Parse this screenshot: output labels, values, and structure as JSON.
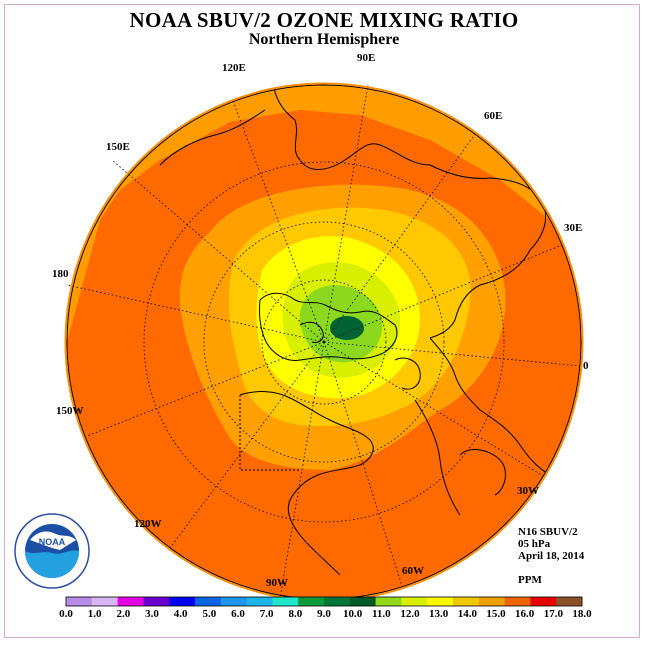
{
  "title": "NOAA SBUV/2 OZONE MIXING RATIO",
  "subtitle": "Northern Hemisphere",
  "longitude_labels": {
    "e90": "90E",
    "e60": "60E",
    "e30": "30E",
    "e120": "120E",
    "e150": "150E",
    "l180": "180",
    "w150": "150W",
    "w120": "120W",
    "w90": "90W",
    "w60": "60W",
    "w30": "30W",
    "l0": "0"
  },
  "info": {
    "instrument": "N16 SBUV/2",
    "level": "05 hPa",
    "date": "April 18, 2014",
    "units": "PPM"
  },
  "logo": {
    "text": "NOAA",
    "icon": "noaa-logo-icon"
  },
  "colorbar": {
    "labels": [
      "0.0",
      "1.0",
      "2.0",
      "3.0",
      "4.0",
      "5.0",
      "6.0",
      "7.0",
      "8.0",
      "9.0",
      "10.0",
      "11.0",
      "12.0",
      "13.0",
      "14.0",
      "15.0",
      "16.0",
      "17.0",
      "18.0"
    ],
    "colors": [
      "#b78ce8",
      "#d8b4f4",
      "#e600e6",
      "#6a00d0",
      "#0000f0",
      "#0a64e6",
      "#1e96f0",
      "#1cb4ec",
      "#1ee6c8",
      "#0a9a3c",
      "#00783a",
      "#005a28",
      "#90d818",
      "#d8f000",
      "#f8f800",
      "#f0c800",
      "#f0a000",
      "#f06400",
      "#e60000",
      "#8c5028"
    ]
  },
  "map_colors": {
    "ocean_orange": "#ff6a00",
    "orange2": "#ffa000",
    "orange1": "#ffbe00",
    "yellow": "#ffff00",
    "yellowgreen": "#d8f000",
    "green_light": "#8cd81e",
    "green_dark": "#006432"
  }
}
